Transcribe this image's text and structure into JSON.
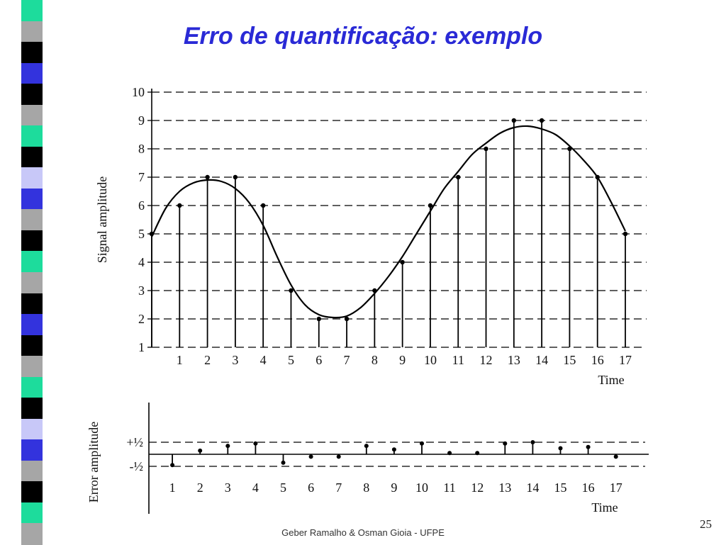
{
  "slide": {
    "title": "Erro de quantificação: exemplo",
    "footer": "Geber Ramalho & Osman Gioia - UFPE",
    "page_number": "25"
  },
  "colors": {
    "title": "#2a2ad6",
    "sidebar": [
      "#1ddc9c",
      "#a6a6a6",
      "#000000",
      "#3333dd",
      "#000000",
      "#a6a6a6",
      "#1ddc9c",
      "#000000",
      "#c8c8f8",
      "#3333dd",
      "#a6a6a6",
      "#000000"
    ]
  },
  "chart_data": [
    {
      "type": "scatter",
      "title": "",
      "ylabel": "Signal amplitude",
      "xlabel": "Time",
      "x_ticks": [
        "1",
        "2",
        "3",
        "4",
        "5",
        "6",
        "7",
        "8",
        "9",
        "10",
        "11",
        "12",
        "13",
        "14",
        "15",
        "16",
        "17"
      ],
      "y_ticks": [
        "1",
        "2",
        "3",
        "4",
        "5",
        "6",
        "7",
        "8",
        "9",
        "10"
      ],
      "xlim": [
        0,
        17
      ],
      "ylim": [
        1,
        10
      ],
      "grid": "dashed horizontal lines at each integer level",
      "continuous_signal": {
        "x": [
          0,
          0.5,
          1,
          1.5,
          2,
          2.5,
          3,
          3.5,
          4,
          4.5,
          5,
          5.5,
          6,
          6.5,
          7,
          7.5,
          8,
          8.5,
          9,
          9.5,
          10,
          10.5,
          11,
          11.5,
          12,
          12.5,
          13,
          13.5,
          14,
          14.5,
          15,
          15.5,
          16,
          16.5,
          17
        ],
        "y": [
          4.9,
          5.9,
          6.5,
          6.8,
          6.9,
          6.85,
          6.6,
          6.1,
          5.3,
          4.2,
          3.2,
          2.5,
          2.15,
          2.05,
          2.1,
          2.4,
          2.9,
          3.5,
          4.2,
          5.0,
          5.8,
          6.6,
          7.2,
          7.8,
          8.2,
          8.55,
          8.75,
          8.8,
          8.7,
          8.5,
          8.1,
          7.6,
          7.0,
          6.1,
          5.1
        ]
      },
      "samples": {
        "x": [
          0,
          1,
          2,
          3,
          4,
          5,
          6,
          7,
          8,
          9,
          10,
          11,
          12,
          13,
          14,
          15,
          16,
          17
        ],
        "y": [
          5,
          6,
          7,
          7,
          6,
          3,
          2,
          2,
          3,
          4,
          6,
          7,
          8,
          9,
          9,
          8,
          7,
          5
        ]
      }
    },
    {
      "type": "scatter",
      "title": "",
      "ylabel": "Error amplitude",
      "xlabel": "Time",
      "x_ticks": [
        "1",
        "2",
        "3",
        "4",
        "5",
        "6",
        "7",
        "8",
        "9",
        "10",
        "11",
        "12",
        "13",
        "14",
        "15",
        "16",
        "17"
      ],
      "y_ticks": [
        "+½",
        "-½"
      ],
      "ylim": [
        -0.5,
        0.5
      ],
      "grid": "dashed lines at +1/2 and -1/2",
      "samples": {
        "x": [
          1,
          2,
          3,
          4,
          5,
          6,
          7,
          8,
          9,
          10,
          11,
          12,
          13,
          14,
          15,
          16,
          17
        ],
        "y": [
          -0.45,
          0.15,
          0.35,
          0.45,
          -0.35,
          -0.1,
          -0.1,
          0.35,
          0.2,
          0.45,
          0.05,
          0.05,
          0.45,
          0.5,
          0.25,
          0.3,
          -0.1
        ]
      }
    }
  ]
}
